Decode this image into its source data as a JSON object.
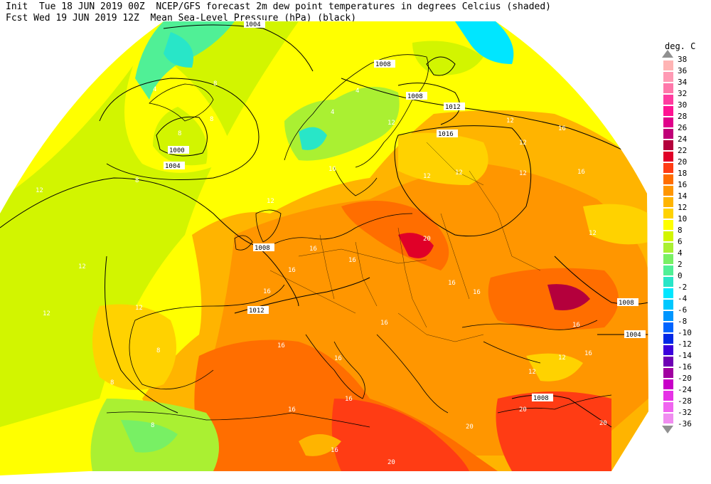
{
  "header": {
    "line1": "Init  Tue 18 JUN 2019 00Z  NCEP/GFS forecast 2m dew point temperatures in degrees Celcius (shaded)",
    "line2": "Fcst Wed 19 JUN 2019 12Z  Mean Sea-Level Pressure (hPa) (black)"
  },
  "legend": {
    "title": "deg. C",
    "labels": [
      "38",
      "36",
      "34",
      "32",
      "30",
      "28",
      "26",
      "24",
      "22",
      "20",
      "18",
      "16",
      "14",
      "12",
      "10",
      "8",
      "6",
      "4",
      "2",
      "0",
      "-2",
      "-4",
      "-6",
      "-8",
      "-10",
      "-12",
      "-14",
      "-16",
      "-20",
      "-24",
      "-28",
      "-32",
      "-36"
    ],
    "colors": [
      "#ffb4b4",
      "#ff9ab4",
      "#ff78aa",
      "#ff3ca0",
      "#ff1493",
      "#e0008a",
      "#c00078",
      "#b4003c",
      "#e00028",
      "#ff3c14",
      "#ff6e00",
      "#ff9600",
      "#ffb400",
      "#ffd200",
      "#ffff00",
      "#d2f500",
      "#aaf032",
      "#78f064",
      "#50f096",
      "#28e6c8",
      "#00e6ff",
      "#00c8ff",
      "#0096ff",
      "#0064ff",
      "#0028e6",
      "#3c00dc",
      "#6e00b4",
      "#a000a0",
      "#c800c8",
      "#e632e6",
      "#f064f0",
      "#f08cf0",
      "#f0b4f0"
    ]
  },
  "isobars": [
    {
      "label": "1004",
      "value": 1004
    },
    {
      "label": "1000",
      "value": 1000
    },
    {
      "label": "1008",
      "value": 1008
    },
    {
      "label": "1012",
      "value": 1012
    },
    {
      "label": "1016",
      "value": 1016
    }
  ],
  "dewpoint_labels": [
    "4",
    "8",
    "12",
    "16",
    "20"
  ]
}
